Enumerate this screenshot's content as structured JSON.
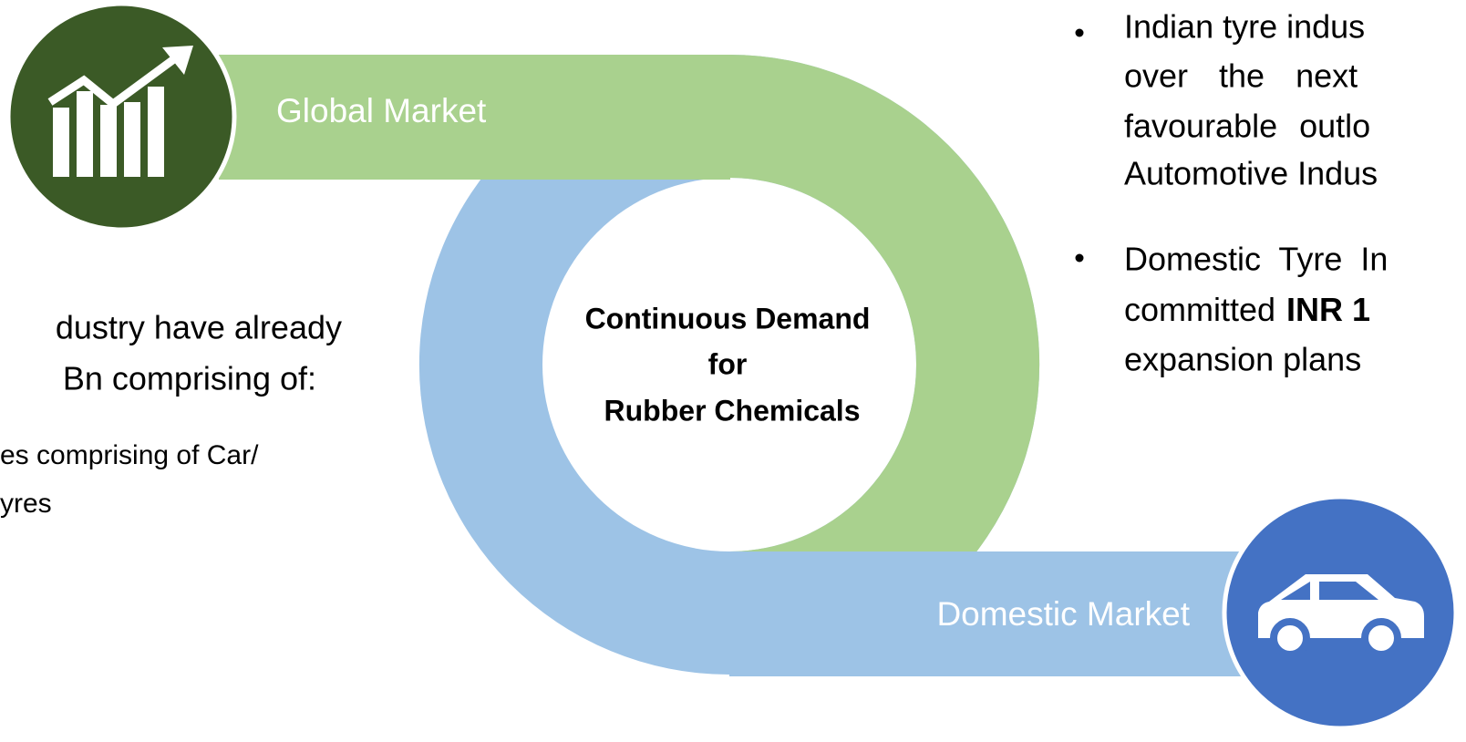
{
  "global_label": "Global Market",
  "domestic_label": "Domestic Market",
  "center_lines": [
    "Continuous Demand",
    "for",
    "Rubber Chemicals"
  ],
  "left_text": {
    "large_lines": [
      "dustry have already",
      "Bn comprising of:"
    ],
    "small_lines": [
      "es comprising of Car/",
      "yres"
    ]
  },
  "right_bullets": [
    {
      "lines": [
        "Indian tyre indus",
        "over the next",
        "favourable outlo",
        "Automotive Indus"
      ]
    },
    {
      "lines": [
        "Domestic Tyre In"
      ],
      "mixed_line": {
        "plain": "committed",
        "bold": "INR 1"
      },
      "last_line": "expansion plans"
    }
  ]
}
